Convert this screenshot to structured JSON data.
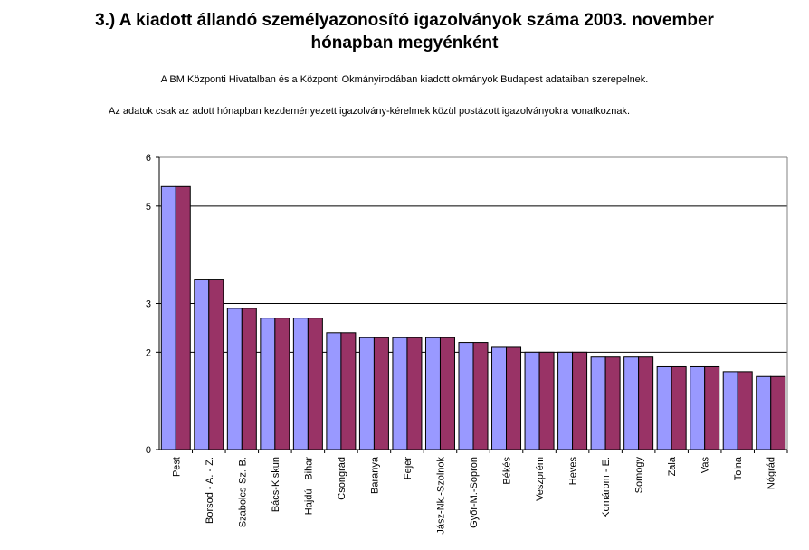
{
  "chart_data": {
    "type": "bar",
    "title": [
      "3.) A kiadott állandó személyazonosító igazolványok száma 2003. november",
      "hónapban megyénként"
    ],
    "notes": [
      "A BM Központi Hivatalban és a Központi Okmányirodában kiadott okmányok Budapest adataiban szerepelnek.",
      "Az adatok  csak az adott hónapban kezdeményezett igazolvány-kérelmek közül postázott igazolványokra vonatkoznak."
    ],
    "categories": [
      "Pest",
      "Borsod - A. - Z.",
      "Szabolcs-Sz.-B.",
      "Bács-Kiskun",
      "Hajdú - Bihar",
      "Csongrád",
      "Baranya",
      "Fejér",
      "Jász-Nk.-Szolnok",
      "Győr-M.-Sopron",
      "Békés",
      "Veszprém",
      "Heves",
      "Komárom - E.",
      "Somogy",
      "Zala",
      "Vas",
      "Tolna",
      "Nógrád"
    ],
    "yticks": [
      "0",
      "2",
      "3",
      "5",
      "6"
    ],
    "ylim": [
      0,
      6
    ],
    "grid": true,
    "series": [
      {
        "values": [
          5.4,
          3.5,
          2.9,
          2.7,
          2.7,
          2.4,
          2.3,
          2.3,
          2.3,
          2.2,
          2.1,
          2.0,
          2.0,
          1.9,
          1.9,
          1.7,
          1.7,
          1.6,
          1.5
        ],
        "color": "#9999ff"
      },
      {
        "values": [
          5.4,
          3.5,
          2.9,
          2.7,
          2.7,
          2.4,
          2.3,
          2.3,
          2.3,
          2.2,
          2.1,
          2.0,
          2.0,
          1.9,
          1.9,
          1.7,
          1.7,
          1.6,
          1.5
        ],
        "color": "#993366"
      }
    ]
  }
}
